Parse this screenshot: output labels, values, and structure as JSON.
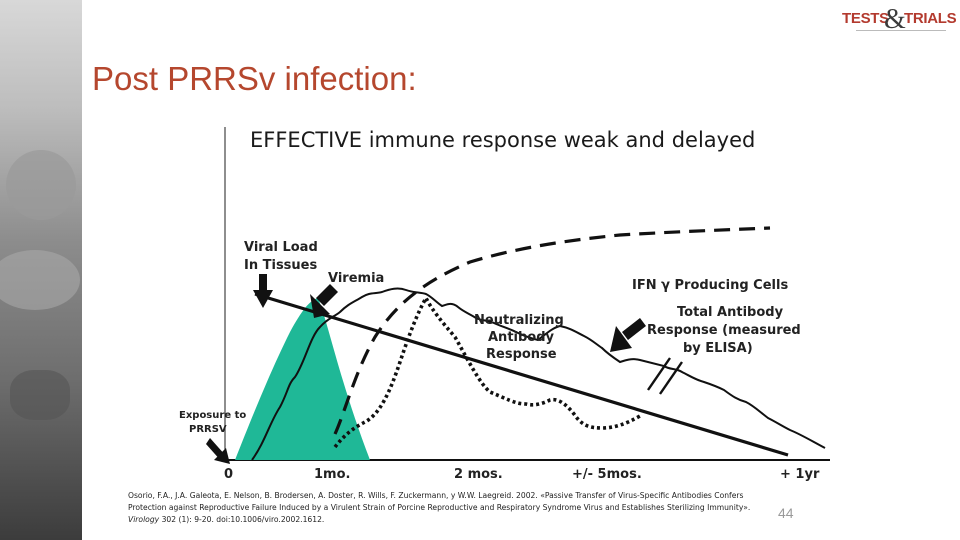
{
  "logo": {
    "word1": "TESTS",
    "ampersand": "&",
    "word2": "TRIALS"
  },
  "slide": {
    "title": "Post PRRSv infection:",
    "subtitle": "EFFECTIVE immune response weak and delayed",
    "page_number": "44"
  },
  "figure": {
    "labels": {
      "viral_load_line1": "Viral Load",
      "viral_load_line2": "In Tissues",
      "viremia": "Viremia",
      "ifn": "IFN γ Producing Cells",
      "neut_line1": "Neutralizing",
      "neut_line2": "Antibody",
      "neut_line3": "Response",
      "total_ab_line1": "Total Antibody",
      "total_ab_line2": "Response (measured",
      "total_ab_line3": "by ELISA)",
      "exposure_line1": "Exposure to",
      "exposure_line2": "PRRSV"
    },
    "x_ticks": [
      "0",
      "1mo.",
      "2 mos.",
      "+/- 5mos.",
      "+ 1yr"
    ],
    "colors": {
      "viremia_fill": "#1fb897",
      "curves": "#1a1a1a"
    }
  },
  "citation": {
    "line1": "Osorio, F.A., J.A. Galeota, E. Nelson, B. Brodersen, A. Doster, R. Wills, F. Zuckermann, y W.W. Laegreid. 2002. «Passive Transfer of Virus-Specific Antibodies Confers",
    "line2": "Protection against Reproductive Failure Induced by a Virulent Strain of Porcine Reproductive and Respiratory Syndrome Virus and Establishes Sterilizing Immunity».",
    "journal": "Virology",
    "line3_rest": " 302 (1): 9-20. doi:10.1006/viro.2002.1612."
  }
}
